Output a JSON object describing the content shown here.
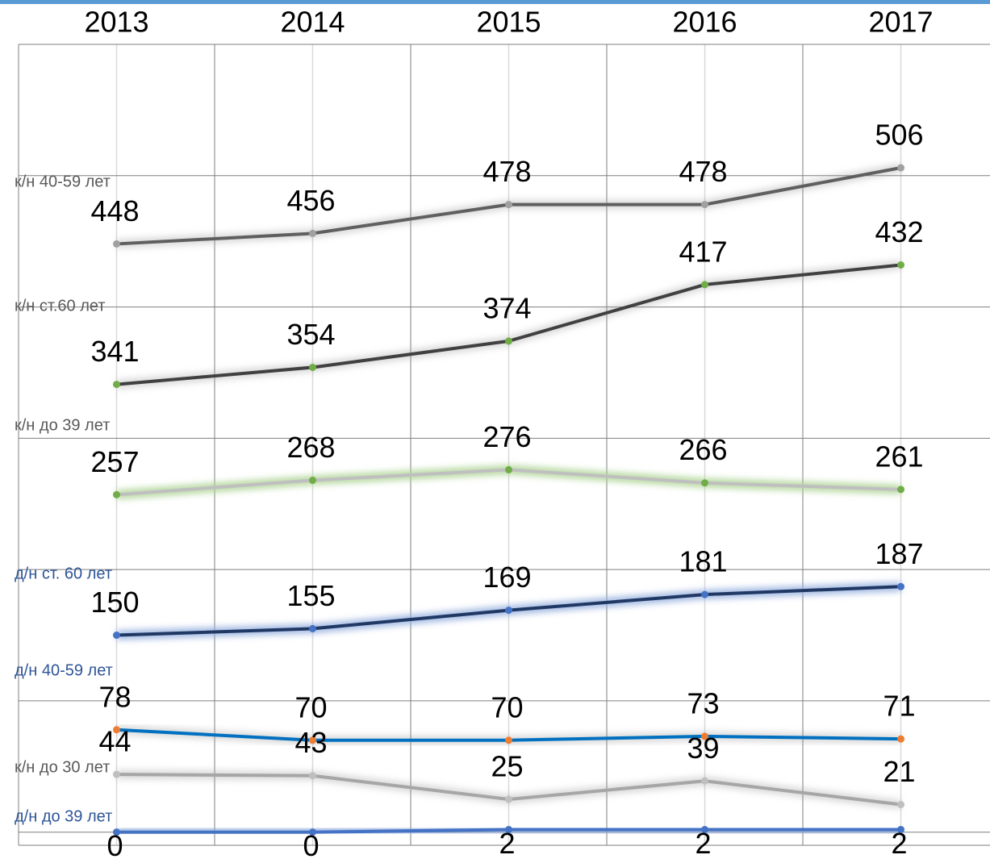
{
  "chart_data": {
    "type": "line",
    "categories": [
      "2013",
      "2014",
      "2015",
      "2016",
      "2017"
    ],
    "ylim": [
      -10,
      600
    ],
    "yticks": [
      0,
      100,
      200,
      300,
      400,
      500,
      600
    ],
    "grid": true,
    "series": [
      {
        "name": "к/н 40-59 лет",
        "color": "#5f5f5f",
        "marker_color": "#a0a0a0",
        "label_color": "#595959",
        "values": [
          448,
          456,
          478,
          478,
          506
        ]
      },
      {
        "name": "к/н ст.60 лет",
        "color": "#404040",
        "marker_color": "#70ad47",
        "label_color": "#595959",
        "values": [
          341,
          354,
          374,
          417,
          432
        ]
      },
      {
        "name": "к/н  до 39 лет",
        "color": "#bfbfbf",
        "marker_color": "#70ad47",
        "label_color": "#595959",
        "glow": "#a9d18e",
        "values": [
          257,
          268,
          276,
          266,
          261
        ]
      },
      {
        "name": "д/н ст. 60 лет",
        "color": "#1f3864",
        "marker_color": "#4472c4",
        "label_color": "#2e5597",
        "glow": "#8faadc",
        "values": [
          150,
          155,
          169,
          181,
          187
        ]
      },
      {
        "name": "д/н 40-59 лет",
        "color": "#0070c0",
        "marker_color": "#ed7d31",
        "label_color": "#2e5597",
        "values": [
          78,
          70,
          70,
          73,
          71
        ]
      },
      {
        "name": "к/н  до 30 лет",
        "color": "#a6a6a6",
        "marker_color": "#bfbfbf",
        "label_color": "#595959",
        "values": [
          44,
          43,
          25,
          39,
          21
        ]
      },
      {
        "name": "д/н  до 39 лет",
        "color": "#4472c4",
        "marker_color": "#4472c4",
        "label_color": "#2e5597",
        "glow": "#8faadc",
        "values": [
          0,
          0,
          2,
          2,
          2
        ]
      }
    ]
  }
}
